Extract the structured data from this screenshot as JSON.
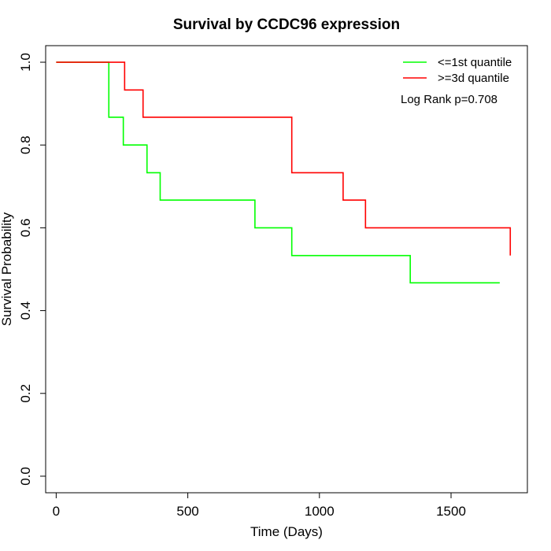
{
  "chart_data": {
    "type": "line",
    "title": "Survival by CCDC96 expression",
    "xlabel": "Time (Days)",
    "ylabel": "Survival Probability",
    "xlim": [
      -40,
      1790
    ],
    "ylim": [
      -0.04,
      1.04
    ],
    "xticks": [
      0,
      500,
      1000,
      1500
    ],
    "yticks": [
      0.0,
      0.2,
      0.4,
      0.6,
      0.8,
      1.0
    ],
    "xtick_labels": [
      "0",
      "500",
      "1000",
      "1500"
    ],
    "ytick_labels": [
      "0.0",
      "0.2",
      "0.4",
      "0.6",
      "0.8",
      "1.0"
    ],
    "grid": false,
    "legend_position": "top-right",
    "annotation": "Log Rank p=0.708",
    "series": [
      {
        "name": "<=1st quantile",
        "color": "#00ff00",
        "step_x": [
          0,
          190,
          200,
          255,
          345,
          395,
          755,
          895,
          1345,
          1685
        ],
        "step_y": [
          1.0,
          1.0,
          0.867,
          0.8,
          0.733,
          0.667,
          0.6,
          0.533,
          0.467,
          0.467
        ]
      },
      {
        "name": ">=3d quantile",
        "color": "#ff0000",
        "step_x": [
          0,
          175,
          260,
          330,
          895,
          1090,
          1175,
          1725
        ],
        "step_y": [
          1.0,
          1.0,
          0.933,
          0.867,
          0.733,
          0.667,
          0.6,
          0.533
        ]
      }
    ]
  }
}
